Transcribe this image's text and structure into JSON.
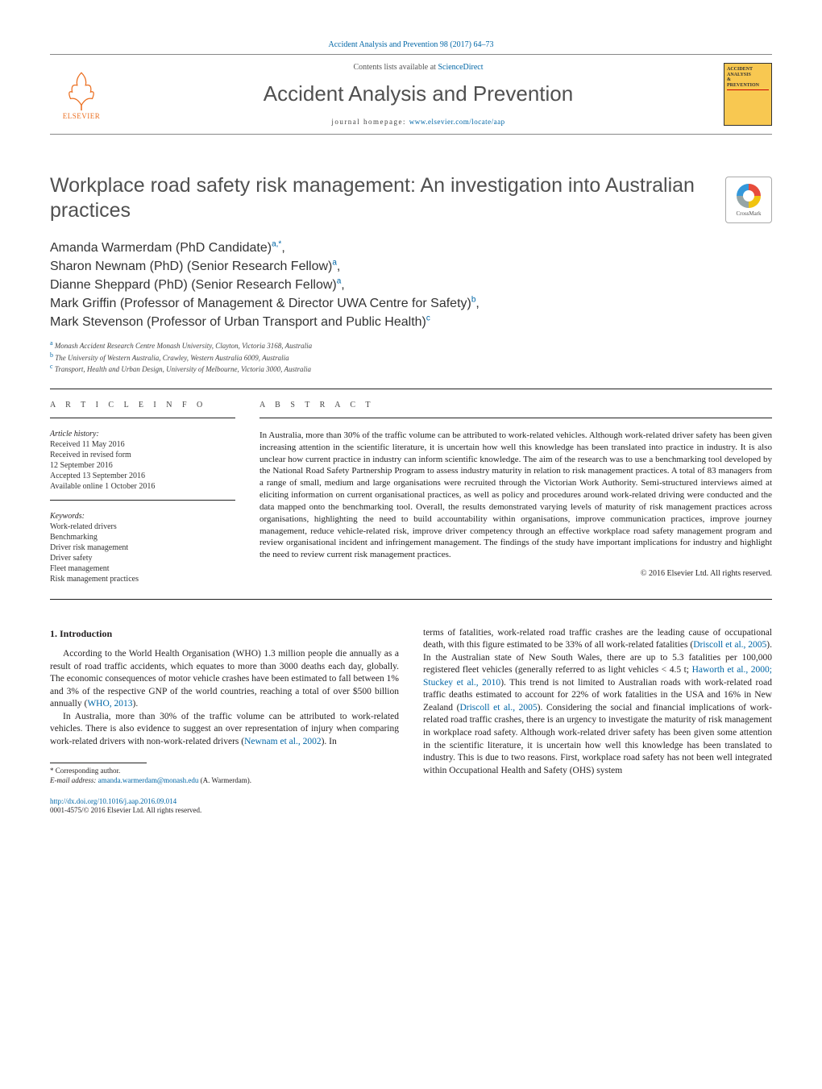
{
  "journal": {
    "header_citation": "Accident Analysis and Prevention 98 (2017) 64–73",
    "contents_prefix": "Contents lists available at ",
    "contents_link": "ScienceDirect",
    "name": "Accident Analysis and Prevention",
    "homepage_prefix": "journal homepage: ",
    "homepage_url": "www.elsevier.com/locate/aap",
    "publisher_label": "ELSEVIER",
    "cover_title_line1": "ACCIDENT",
    "cover_title_line2": "ANALYSIS",
    "cover_title_line3": "&",
    "cover_title_line4": "PREVENTION",
    "crossmark_label": "CrossMark"
  },
  "article": {
    "title": "Workplace road safety risk management: An investigation into Australian practices",
    "authors_html": "Amanda Warmerdam (PhD Candidate)<sup>a,*</sup>,<br>Sharon Newnam (PhD) (Senior Research Fellow)<sup>a</sup>,<br>Dianne Sheppard (PhD) (Senior Research Fellow)<sup>a</sup>,<br>Mark Griffin (Professor of Management & Director UWA Centre for Safety)<sup>b</sup>,<br>Mark Stevenson (Professor of Urban Transport and Public Health)<sup>c</sup>",
    "affiliations": {
      "a": "Monash Accident Research Centre Monash University, Clayton, Victoria 3168, Australia",
      "b": "The University of Western Australia, Crawley, Western Australia 6009, Australia",
      "c": "Transport, Health and Urban Design, University of Melbourne, Victoria 3000, Australia"
    },
    "info_label": "A R T I C L E   I N F O",
    "abstract_label": "A B S T R A C T",
    "history_title": "Article history:",
    "history": {
      "received": "Received 11 May 2016",
      "revised": "Received in revised form\n12 September 2016",
      "accepted": "Accepted 13 September 2016",
      "online": "Available online 1 October 2016"
    },
    "keywords_title": "Keywords:",
    "keywords": [
      "Work-related drivers",
      "Benchmarking",
      "Driver risk management",
      "Driver safety",
      "Fleet management",
      "Risk management practices"
    ],
    "abstract": "In Australia, more than 30% of the traffic volume can be attributed to work-related vehicles. Although work-related driver safety has been given increasing attention in the scientific literature, it is uncertain how well this knowledge has been translated into practice in industry. It is also unclear how current practice in industry can inform scientific knowledge. The aim of the research was to use a benchmarking tool developed by the National Road Safety Partnership Program to assess industry maturity in relation to risk management practices. A total of 83 managers from a range of small, medium and large organisations were recruited through the Victorian Work Authority. Semi-structured interviews aimed at eliciting information on current organisational practices, as well as policy and procedures around work-related driving were conducted and the data mapped onto the benchmarking tool. Overall, the results demonstrated varying levels of maturity of risk management practices across organisations, highlighting the need to build accountability within organisations, improve communication practices, improve journey management, reduce vehicle-related risk, improve driver competency through an effective workplace road safety management program and review organisational incident and infringement management. The findings of the study have important implications for industry and highlight the need to review current risk management practices.",
    "copyright": "© 2016 Elsevier Ltd. All rights reserved."
  },
  "body": {
    "intro_heading": "1. Introduction",
    "col1_p1": "According to the World Health Organisation (WHO) 1.3 million people die annually as a result of road traffic accidents, which equates to more than 3000 deaths each day, globally. The economic consequences of motor vehicle crashes have been estimated to fall between 1% and 3% of the respective GNP of the world countries, reaching a total of over $500 billion annually (",
    "col1_p1_cite": "WHO, 2013",
    "col1_p1_end": ").",
    "col1_p2": "In Australia, more than 30% of the traffic volume can be attributed to work-related vehicles. There is also evidence to suggest an over representation of injury when comparing work-related drivers with non-work-related drivers (",
    "col1_p2_cite": "Newnam et al., 2002",
    "col1_p2_end": "). In",
    "col2_p1a": "terms of fatalities, work-related road traffic crashes are the leading cause of occupational death, with this figure estimated to be 33% of all work-related fatalities (",
    "col2_p1_cite1": "Driscoll et al., 2005",
    "col2_p1b": "). In the Australian state of New South Wales, there are up to 5.3 fatalities per 100,000 registered fleet vehicles (generally referred to as light vehicles < 4.5 t; ",
    "col2_p1_cite2": "Haworth et al., 2000; Stuckey et al., 2010",
    "col2_p1c": "). This trend is not limited to Australian roads with work-related road traffic deaths estimated to account for 22% of work fatalities in the USA and 16% in New Zealand (",
    "col2_p1_cite3": "Driscoll et al., 2005",
    "col2_p1d": "). Considering the social and financial implications of work-related road traffic crashes, there is an urgency to investigate the maturity of risk management in workplace road safety. Although work-related driver safety has been given some attention in the scientific literature, it is uncertain how well this knowledge has been translated to industry. This is due to two reasons. First, workplace road safety has not been well integrated within Occupational Health and Safety (OHS) system"
  },
  "footer": {
    "corr_label": "* Corresponding author.",
    "email_label": "E-mail address: ",
    "email": "amanda.warmerdam@monash.edu",
    "email_suffix": " (A. Warmerdam).",
    "doi_url": "http://dx.doi.org/10.1016/j.aap.2016.09.014",
    "issn_line": "0001-4575/© 2016 Elsevier Ltd. All rights reserved."
  },
  "colors": {
    "link": "#0066a6",
    "elsevier_orange": "#eb6e1f",
    "text": "#231f20",
    "cover_bg": "#f8c851"
  }
}
